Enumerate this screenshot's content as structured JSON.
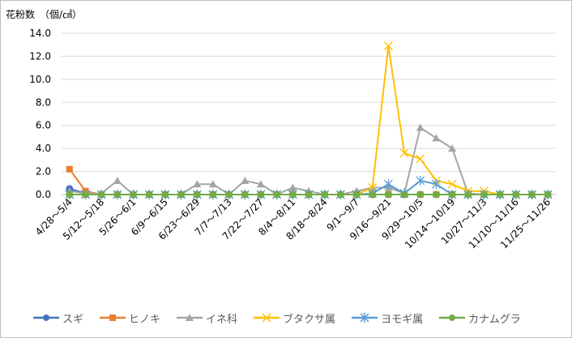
{
  "chart_data": {
    "type": "line",
    "title": "",
    "unit_label": "花粉数　（個/㎠）",
    "xlabel": "",
    "ylabel": "",
    "ylim": [
      0,
      14
    ],
    "yticks": [
      "0.0",
      "2.0",
      "4.0",
      "6.0",
      "8.0",
      "10.0",
      "12.0",
      "14.0"
    ],
    "grid": true,
    "legend_position": "bottom",
    "categories": [
      "4/28～5/4",
      "",
      "5/12～5/18",
      "",
      "5/26～6/1",
      "",
      "6/9～6/15",
      "",
      "6/23～6/29",
      "",
      "7/7～7/13",
      "",
      "7/22～7/27",
      "",
      "8/4～8/11",
      "",
      "8/18～8/24",
      "",
      "9/1～9/7",
      "",
      "9/16～9/21",
      "",
      "9/29～10/5",
      "",
      "10/14～10/19",
      "",
      "10/27～11/3",
      "",
      "11/10～11/16",
      "",
      "11/25～11/26"
    ],
    "series": [
      {
        "name": "スギ",
        "color": "#4472c4",
        "marker": "circle",
        "values": [
          0.5,
          0.1,
          0,
          0,
          0,
          0,
          0,
          0,
          0,
          0,
          0,
          0,
          0,
          0,
          0,
          0,
          0,
          0,
          0,
          0,
          0,
          0,
          0,
          0,
          0,
          0,
          0,
          0,
          0,
          0,
          0
        ]
      },
      {
        "name": "ヒノキ",
        "color": "#ed7d31",
        "marker": "square",
        "values": [
          2.2,
          0.3,
          0,
          0,
          0,
          0,
          0,
          0,
          0,
          0,
          0,
          0,
          0,
          0,
          0,
          0,
          0,
          0,
          0,
          0,
          0,
          0,
          0,
          0,
          0,
          0,
          0,
          0,
          0,
          0,
          0
        ]
      },
      {
        "name": "イネ科",
        "color": "#a5a5a5",
        "marker": "triangle",
        "values": [
          0.3,
          0.1,
          0.1,
          1.2,
          0,
          0,
          0,
          0,
          0.9,
          0.9,
          0,
          1.2,
          0.9,
          0,
          0.6,
          0.3,
          0,
          0,
          0.3,
          0.6,
          0.6,
          0.1,
          5.8,
          4.9,
          4.0,
          0.1,
          0,
          0,
          0,
          0,
          0
        ]
      },
      {
        "name": "ブタクサ属",
        "color": "#ffc000",
        "marker": "x",
        "values": [
          0,
          0,
          0,
          0,
          0,
          0,
          0,
          0,
          0,
          0,
          0,
          0,
          0,
          0,
          0,
          0,
          0,
          0,
          0,
          0.6,
          12.9,
          3.6,
          3.1,
          1.2,
          0.9,
          0.3,
          0.3,
          0,
          0,
          0,
          0
        ]
      },
      {
        "name": "ヨモギ属",
        "color": "#5b9bd5",
        "marker": "asterisk",
        "values": [
          0,
          0,
          0,
          0,
          0,
          0,
          0,
          0,
          0,
          0,
          0,
          0,
          0,
          0,
          0,
          0,
          0,
          0,
          0,
          0.1,
          0.9,
          0.1,
          1.2,
          0.9,
          0,
          0,
          0,
          0,
          0,
          0,
          0
        ]
      },
      {
        "name": "カナムグラ",
        "color": "#70ad47",
        "marker": "circle",
        "values": [
          0,
          0,
          0,
          0,
          0,
          0,
          0,
          0,
          0,
          0,
          0,
          0,
          0,
          0,
          0,
          0,
          0,
          0,
          0,
          0,
          0,
          0,
          0,
          0,
          0,
          0,
          0,
          0,
          0,
          0,
          0
        ]
      }
    ]
  }
}
